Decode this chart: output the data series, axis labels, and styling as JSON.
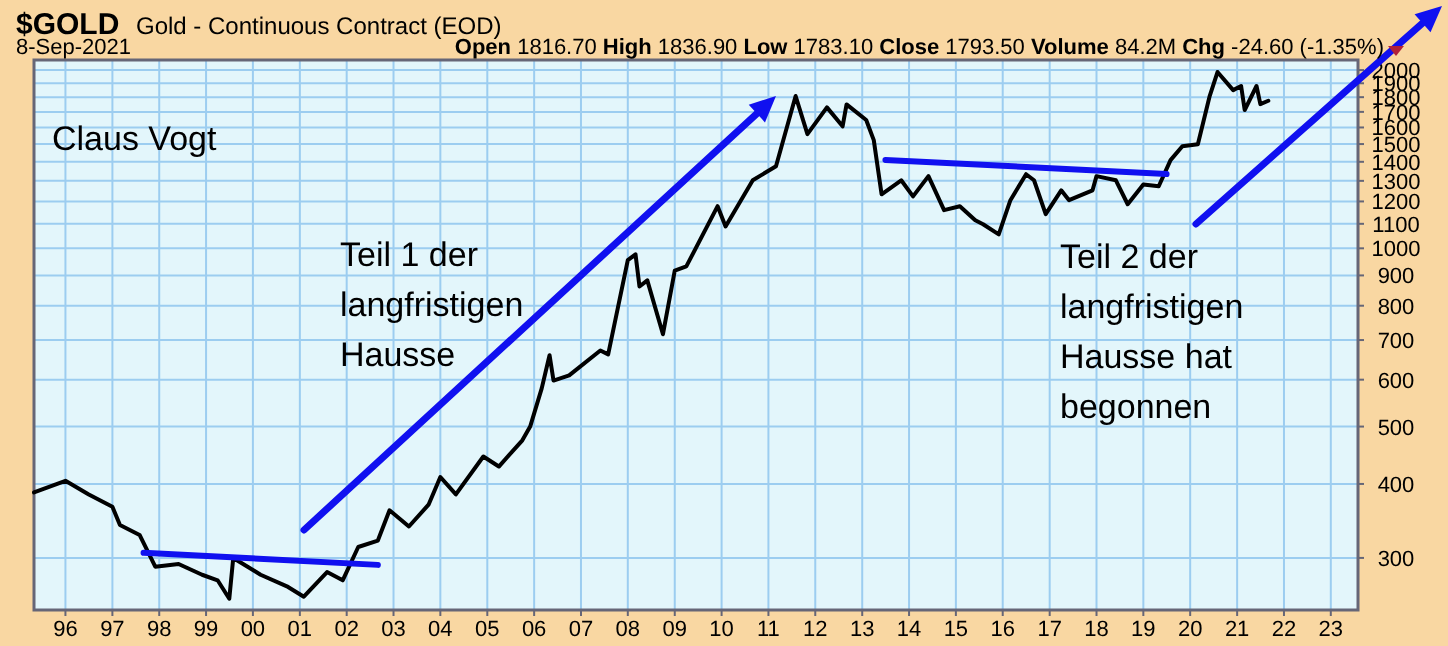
{
  "chart_data": {
    "type": "line",
    "title": "$GOLD",
    "subtitle": "Gold - Continuous Contract (EOD)",
    "annotations": [
      "8-Sep-2021",
      "Open 1816.70 High 1836.90 Low 1783.10 Close 1793.50 Volume 84.2M Chg -24.60 (-1.35%)",
      "Claus Vogt",
      "Teil 1 der\nlangfristigen\nHausse",
      "Teil 2 der\nlangfristigen\nHausse hat\nbegonnen"
    ],
    "x": [
      "1995-05",
      "1996-01",
      "1996-07",
      "1997-01",
      "1997-03",
      "1997-08",
      "1997-12",
      "1998-06",
      "1998-12",
      "1999-04",
      "1999-07",
      "1999-08",
      "2000-03",
      "2000-10",
      "2001-02",
      "2001-08",
      "2001-12",
      "2002-04",
      "2002-09",
      "2002-12",
      "2003-05",
      "2003-10",
      "2004-01",
      "2004-05",
      "2004-12",
      "2005-04",
      "2005-10",
      "2005-12",
      "2006-03",
      "2006-05",
      "2006-06",
      "2006-10",
      "2007-06",
      "2007-08",
      "2008-01",
      "2008-03",
      "2008-04",
      "2008-06",
      "2008-10",
      "2009-01",
      "2009-04",
      "2009-12",
      "2010-02",
      "2010-09",
      "2011-03",
      "2011-08",
      "2011-11",
      "2012-04",
      "2012-08",
      "2012-09",
      "2013-02",
      "2013-04",
      "2013-06",
      "2013-11",
      "2014-02",
      "2014-06",
      "2014-10",
      "2015-02",
      "2015-06",
      "2015-08",
      "2015-12",
      "2016-03",
      "2016-07",
      "2016-09",
      "2016-12",
      "2017-04",
      "2017-06",
      "2017-12",
      "2018-01",
      "2018-06",
      "2018-09",
      "2019-01",
      "2019-05",
      "2019-08",
      "2019-11",
      "2020-03",
      "2020-06",
      "2020-08",
      "2020-12",
      "2021-02",
      "2021-03",
      "2021-06",
      "2021-07",
      "2021-09"
    ],
    "series": [
      {
        "color": "#000000",
        "values": [
          387,
          405,
          384,
          366,
          341,
          328,
          290,
          293,
          281,
          275,
          256,
          300,
          281,
          268,
          258,
          284,
          275,
          313,
          321,
          361,
          339,
          369,
          411,
          384,
          445,
          428,
          474,
          500,
          580,
          660,
          598,
          610,
          672,
          662,
          955,
          977,
          862,
          883,
          716,
          917,
          932,
          1178,
          1089,
          1303,
          1376,
          1808,
          1559,
          1730,
          1607,
          1750,
          1647,
          1523,
          1234,
          1303,
          1224,
          1324,
          1160,
          1178,
          1115,
          1098,
          1056,
          1206,
          1334,
          1303,
          1142,
          1253,
          1206,
          1253,
          1324,
          1303,
          1187,
          1282,
          1273,
          1409,
          1487,
          1499,
          1808,
          1985,
          1850,
          1880,
          1712,
          1880,
          1752,
          1775
        ]
      },
      {
        "type": "line",
        "color": "#1010f0",
        "x": [
          "1997-09",
          "2002-09"
        ],
        "values": [
          306,
          292
        ]
      },
      {
        "type": "line",
        "color": "#1010f0",
        "x": [
          "2013-07",
          "2019-07"
        ],
        "values": [
          1410,
          1335
        ]
      }
    ],
    "log": "y",
    "grid": true,
    "tick_labels": "xy",
    "xlim": [
      "1995-05",
      "2023-08"
    ],
    "xticks": [
      {
        "value": "1996-01",
        "label": "96"
      },
      {
        "value": "1997-01",
        "label": "97"
      },
      {
        "value": "1998-01",
        "label": "98"
      },
      {
        "value": "1999-01",
        "label": "99"
      },
      {
        "value": "2000-01",
        "label": "00"
      },
      {
        "value": "2001-01",
        "label": "01"
      },
      {
        "value": "2002-01",
        "label": "02"
      },
      {
        "value": "2003-01",
        "label": "03"
      },
      {
        "value": "2004-01",
        "label": "04"
      },
      {
        "value": "2005-01",
        "label": "05"
      },
      {
        "value": "2006-01",
        "label": "06"
      },
      {
        "value": "2007-01",
        "label": "07"
      },
      {
        "value": "2008-01",
        "label": "08"
      },
      {
        "value": "2009-01",
        "label": "09"
      },
      {
        "value": "2010-01",
        "label": "10"
      },
      {
        "value": "2011-01",
        "label": "11"
      },
      {
        "value": "2012-01",
        "label": "12"
      },
      {
        "value": "2013-01",
        "label": "13"
      },
      {
        "value": "2014-01",
        "label": "14"
      },
      {
        "value": "2015-01",
        "label": "15"
      },
      {
        "value": "2016-01",
        "label": "16"
      },
      {
        "value": "2017-01",
        "label": "17"
      },
      {
        "value": "2018-01",
        "label": "18"
      },
      {
        "value": "2019-01",
        "label": "19"
      },
      {
        "value": "2020-01",
        "label": "20"
      },
      {
        "value": "2021-01",
        "label": "21"
      },
      {
        "value": "2022-01",
        "label": "22"
      },
      {
        "value": "2023-01",
        "label": "23"
      }
    ],
    "ylim": [
      245,
      2080
    ],
    "yticks": [
      300,
      400,
      500,
      600,
      700,
      800,
      900,
      1000,
      1100,
      1200,
      1300,
      1400,
      1500,
      1600,
      1700,
      1800,
      1900,
      2000
    ]
  }
}
